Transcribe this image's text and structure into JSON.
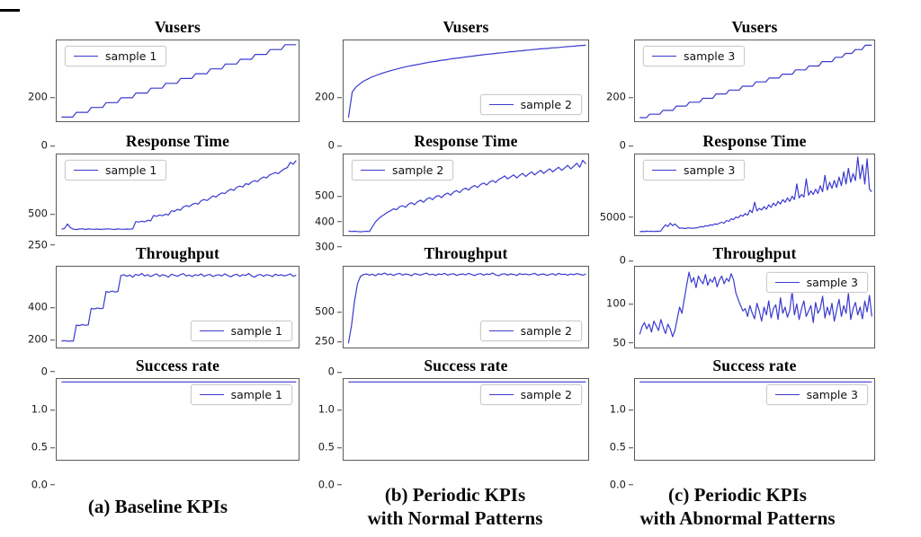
{
  "figure": {
    "line_color": "#3a3ad0",
    "border_color": "#5a5a5a",
    "background": "#ffffff"
  },
  "captions": [
    {
      "lines": [
        "(a) Baseline KPIs"
      ]
    },
    {
      "lines": [
        "(b) Periodic KPIs",
        "with Normal Patterns"
      ]
    },
    {
      "lines": [
        "(c) Periodic KPIs",
        "with Abnormal Patterns"
      ]
    }
  ],
  "chart_data": [
    {
      "type": "line",
      "title": "Vusers",
      "column": "a",
      "legend_position": "top-left",
      "ylim": [
        -15,
        320
      ],
      "yticks": [
        0,
        200
      ],
      "ytick_labels": [
        "0",
        "200"
      ],
      "xticks_visible": false,
      "grid": false,
      "series": [
        {
          "name": "sample 1",
          "values": [
            2,
            2,
            2,
            2,
            22,
            22,
            22,
            22,
            42,
            42,
            42,
            42,
            62,
            62,
            62,
            62,
            82,
            82,
            82,
            82,
            102,
            102,
            102,
            102,
            122,
            122,
            122,
            122,
            142,
            142,
            142,
            142,
            162,
            162,
            162,
            162,
            182,
            182,
            182,
            182,
            202,
            202,
            202,
            202,
            222,
            222,
            222,
            222,
            242,
            242,
            242,
            242,
            262,
            262,
            262,
            262,
            282,
            282,
            282,
            282,
            302,
            302,
            302,
            302
          ]
        }
      ]
    },
    {
      "type": "line",
      "title": "Vusers",
      "column": "b",
      "legend_position": "bottom-right",
      "ylim": [
        -15,
        320
      ],
      "yticks": [
        0,
        200
      ],
      "ytick_labels": [
        "0",
        "200"
      ],
      "xticks_visible": false,
      "grid": false,
      "series": [
        {
          "name": "sample 2",
          "values": [
            0,
            106,
            127,
            140,
            151,
            159,
            167,
            173,
            179,
            184,
            189,
            194,
            198,
            202,
            206,
            210,
            213,
            216,
            219,
            222,
            225,
            228,
            231,
            233,
            236,
            238,
            240,
            243,
            245,
            247,
            249,
            251,
            253,
            255,
            257,
            259,
            261,
            263,
            264,
            266,
            268,
            269,
            271,
            273,
            274,
            276,
            277,
            279,
            280,
            282,
            283,
            285,
            286,
            287,
            289,
            290,
            291,
            293,
            294,
            295,
            296,
            298,
            299,
            300
          ]
        }
      ]
    },
    {
      "type": "line",
      "title": "Vusers",
      "column": "c",
      "legend_position": "top-left",
      "ylim": [
        -15,
        320
      ],
      "yticks": [
        0,
        200
      ],
      "ytick_labels": [
        "0",
        "200"
      ],
      "xticks_visible": false,
      "grid": false,
      "series": [
        {
          "name": "sample 3",
          "values": [
            0,
            0,
            0,
            14,
            14,
            14,
            14,
            30,
            30,
            30,
            30,
            48,
            48,
            48,
            48,
            64,
            64,
            64,
            64,
            80,
            80,
            80,
            80,
            98,
            98,
            98,
            98,
            114,
            114,
            114,
            114,
            130,
            130,
            130,
            130,
            148,
            148,
            148,
            148,
            164,
            164,
            164,
            164,
            180,
            180,
            180,
            180,
            198,
            198,
            198,
            198,
            214,
            214,
            214,
            214,
            232,
            232,
            232,
            232,
            250,
            250,
            250,
            266,
            266,
            266,
            282,
            282,
            282,
            300,
            300,
            300
          ]
        }
      ]
    },
    {
      "type": "line",
      "title": "Response Time",
      "column": "a",
      "legend_position": "top-left",
      "ylim": [
        100,
        760
      ],
      "yticks": [
        250,
        500
      ],
      "ytick_labels": [
        "250",
        "500"
      ],
      "xticks_visible": false,
      "grid": false,
      "series": [
        {
          "name": "sample 1",
          "values": [
            150,
            156,
            192,
            162,
            150,
            147,
            151,
            153,
            148,
            152,
            150,
            149,
            151,
            148,
            150,
            151,
            153,
            149,
            148,
            152,
            150,
            149,
            151,
            150,
            152,
            212,
            208,
            215,
            210,
            222,
            218,
            262,
            255,
            266,
            260,
            272,
            266,
            300,
            294,
            312,
            304,
            332,
            342,
            334,
            352,
            362,
            354,
            382,
            392,
            384,
            402,
            422,
            412,
            432,
            446,
            440,
            462,
            476,
            466,
            492,
            502,
            494,
            522,
            514,
            536,
            546,
            538,
            562,
            576,
            568,
            592,
            602,
            612,
            604,
            626,
            642,
            652,
            695,
            680,
            710
          ]
        }
      ]
    },
    {
      "type": "line",
      "title": "Response Time",
      "column": "b",
      "legend_position": "top-left",
      "ylim": [
        235,
        555
      ],
      "yticks": [
        300,
        400,
        500
      ],
      "ytick_labels": [
        "300",
        "400",
        "500"
      ],
      "xticks_visible": false,
      "grid": false,
      "series": [
        {
          "name": "sample 2",
          "values": [
            252,
            250,
            251,
            250,
            249,
            250,
            251,
            250,
            270,
            288,
            300,
            310,
            318,
            326,
            332,
            340,
            336,
            348,
            352,
            346,
            358,
            364,
            356,
            368,
            374,
            366,
            378,
            384,
            376,
            388,
            392,
            384,
            396,
            402,
            394,
            406,
            412,
            404,
            416,
            422,
            414,
            426,
            432,
            424,
            436,
            442,
            434,
            446,
            452,
            444,
            456,
            462,
            470,
            458,
            466,
            474,
            462,
            472,
            480,
            468,
            478,
            486,
            474,
            484,
            492,
            480,
            490,
            498,
            486,
            496,
            504,
            492,
            502,
            512,
            498,
            508,
            520,
            505,
            532,
            518
          ]
        }
      ]
    },
    {
      "type": "line",
      "title": "Response Time",
      "column": "c",
      "legend_position": "top-left",
      "ylim": [
        -300,
        9000
      ],
      "yticks": [
        0,
        5000
      ],
      "ytick_labels": [
        "0",
        "5000"
      ],
      "xticks_visible": false,
      "grid": false,
      "series": [
        {
          "name": "sample 3",
          "values": [
            100,
            150,
            120,
            180,
            140,
            160,
            130,
            170,
            150,
            200,
            600,
            900,
            700,
            1100,
            800,
            1000,
            750,
            500,
            550,
            480,
            520,
            560,
            500,
            530,
            550,
            600,
            700,
            650,
            800,
            750,
            900,
            850,
            1000,
            950,
            1100,
            1200,
            1100,
            1400,
            1300,
            1600,
            1500,
            1800,
            1700,
            2000,
            1900,
            2200,
            2000,
            2600,
            2300,
            3500,
            2500,
            2800,
            2600,
            3000,
            2700,
            3200,
            2900,
            3400,
            3100,
            3600,
            3300,
            3800,
            3500,
            4000,
            3600,
            4200,
            3800,
            5600,
            4000,
            4400,
            4100,
            6200,
            4300,
            4800,
            4400,
            5000,
            4500,
            5400,
            4700,
            6600,
            4900,
            5800,
            5100,
            6000,
            5200,
            6400,
            5400,
            7000,
            5600,
            7400,
            5800,
            6800,
            6000,
            8700,
            6200,
            7800,
            5600,
            8500,
            5000,
            4700
          ]
        }
      ]
    },
    {
      "type": "line",
      "title": "Throughput",
      "column": "a",
      "legend_position": "bottom-right",
      "ylim": [
        -25,
        480
      ],
      "yticks": [
        0,
        200,
        400
      ],
      "ytick_labels": [
        "0",
        "200",
        "400"
      ],
      "xticks_visible": false,
      "grid": false,
      "series": [
        {
          "name": "sample 1",
          "values": [
            15,
            18,
            14,
            16,
            15,
            115,
            112,
            118,
            114,
            116,
            220,
            215,
            222,
            218,
            220,
            325,
            320,
            328,
            322,
            325,
            425,
            430,
            420,
            428,
            415,
            432,
            425,
            438,
            422,
            430,
            418,
            428,
            435,
            420,
            430,
            425,
            415,
            433,
            427,
            420,
            430,
            437,
            422,
            428,
            418,
            430,
            425,
            435,
            420,
            428,
            432,
            418,
            426,
            430,
            422,
            435,
            425,
            417,
            428,
            433,
            420,
            430,
            425,
            438,
            422,
            415,
            428,
            432,
            420,
            430,
            426,
            418,
            433,
            425,
            430,
            422,
            428,
            435,
            420,
            427
          ]
        }
      ]
    },
    {
      "type": "line",
      "title": "Throughput",
      "column": "b",
      "legend_position": "bottom-right",
      "ylim": [
        -30,
        640
      ],
      "yticks": [
        0,
        250,
        500
      ],
      "ytick_labels": [
        "0",
        "250",
        "500"
      ],
      "xticks_visible": false,
      "grid": false,
      "series": [
        {
          "name": "sample 2",
          "values": [
            5,
            150,
            350,
            500,
            560,
            575,
            580,
            570,
            578,
            565,
            582,
            575,
            588,
            572,
            580,
            568,
            578,
            585,
            570,
            580,
            575,
            565,
            583,
            577,
            570,
            580,
            587,
            572,
            578,
            568,
            580,
            575,
            585,
            570,
            578,
            582,
            568,
            576,
            580,
            572,
            585,
            575,
            567,
            578,
            583,
            570,
            580,
            575,
            588,
            572,
            565,
            578,
            582,
            570,
            580,
            576,
            568,
            583,
            575,
            580,
            572,
            578,
            585,
            570,
            577,
            580,
            568,
            575,
            582,
            570,
            585,
            575,
            578,
            570,
            580,
            574,
            583,
            577,
            570,
            580
          ]
        }
      ]
    },
    {
      "type": "line",
      "title": "Throughput",
      "column": "c",
      "legend_position": "top-right",
      "ylim": [
        8,
        112
      ],
      "yticks": [
        50,
        100
      ],
      "ytick_labels": [
        "50",
        "100"
      ],
      "xticks_visible": false,
      "grid": false,
      "series": [
        {
          "name": "sample 3",
          "values": [
            25,
            35,
            40,
            32,
            38,
            28,
            42,
            36,
            30,
            44,
            34,
            26,
            38,
            32,
            22,
            30,
            45,
            60,
            52,
            70,
            88,
            105,
            92,
            98,
            85,
            100,
            94,
            90,
            102,
            88,
            96,
            92,
            99,
            86,
            95,
            100,
            90,
            97,
            93,
            103,
            95,
            78,
            70,
            62,
            55,
            58,
            48,
            62,
            52,
            45,
            65,
            55,
            42,
            60,
            50,
            68,
            46,
            58,
            63,
            44,
            72,
            52,
            60,
            47,
            56,
            80,
            50,
            64,
            44,
            58,
            68,
            48,
            55,
            62,
            40,
            66,
            52,
            58,
            74,
            46,
            60,
            50,
            65,
            42,
            56,
            70,
            48,
            62,
            52,
            78,
            44,
            58,
            66,
            50,
            60,
            45,
            68,
            54,
            75,
            48
          ]
        }
      ]
    },
    {
      "type": "line",
      "title": "Success rate",
      "column": "a",
      "legend_position": "top-right",
      "ylim": [
        -0.04,
        1.04
      ],
      "yticks": [
        0.0,
        0.5,
        1.0
      ],
      "ytick_labels": [
        "0.0",
        "0.5",
        "1.0"
      ],
      "xticks_visible": false,
      "grid": false,
      "series": [
        {
          "name": "sample 1",
          "values": [
            1,
            1
          ]
        }
      ]
    },
    {
      "type": "line",
      "title": "Success rate",
      "column": "b",
      "legend_position": "top-right",
      "ylim": [
        -0.04,
        1.04
      ],
      "yticks": [
        0.0,
        0.5,
        1.0
      ],
      "ytick_labels": [
        "0.0",
        "0.5",
        "1.0"
      ],
      "xticks_visible": false,
      "grid": false,
      "series": [
        {
          "name": "sample 2",
          "values": [
            1,
            1
          ]
        }
      ]
    },
    {
      "type": "line",
      "title": "Success rate",
      "column": "c",
      "legend_position": "top-right",
      "ylim": [
        -0.04,
        1.04
      ],
      "yticks": [
        0.0,
        0.5,
        1.0
      ],
      "ytick_labels": [
        "0.0",
        "0.5",
        "1.0"
      ],
      "xticks_visible": false,
      "grid": false,
      "series": [
        {
          "name": "sample 3",
          "values": [
            1,
            1
          ]
        }
      ]
    }
  ]
}
